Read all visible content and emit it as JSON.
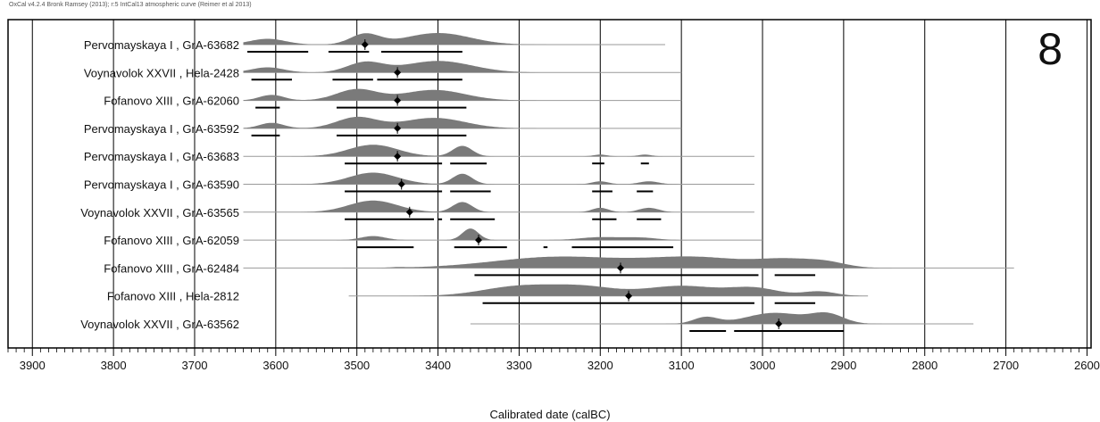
{
  "header_text": "OxCal v4.2.4 Bronk Ramsey (2013); r:5 IntCal13 atmospheric curve (Reimer et al 2013)",
  "panel_label": "8",
  "chart_data": {
    "type": "multiplot-probability",
    "xlabel": "Calibrated date (calBC)",
    "xlim": [
      3930,
      2595
    ],
    "x_ticks": [
      3900,
      3800,
      3700,
      3600,
      3500,
      3400,
      3300,
      3200,
      3100,
      3000,
      2900,
      2800,
      2700,
      2600
    ],
    "grid": "vertical lines at every 100 years",
    "rows": [
      {
        "label": "Pervomayskaya I , GrA-63682",
        "line": [
          3640,
          3120
        ],
        "peaks": [
          [
            3610,
            22,
            0.5
          ],
          [
            3490,
            18,
            0.9
          ],
          [
            3400,
            40,
            1.0
          ]
        ],
        "ranges": [
          [
            3635,
            3560
          ],
          [
            3535,
            3485
          ],
          [
            3470,
            3370
          ]
        ],
        "median": 3490
      },
      {
        "label": "Voynavolok XXVII , Hela-2428",
        "line": [
          3640,
          3100
        ],
        "peaks": [
          [
            3610,
            20,
            0.45
          ],
          [
            3490,
            22,
            0.85
          ],
          [
            3400,
            42,
            1.0
          ]
        ],
        "ranges": [
          [
            3630,
            3580
          ],
          [
            3530,
            3480
          ],
          [
            3475,
            3370
          ]
        ],
        "median": 3450
      },
      {
        "label": "Fofanovo XIII , GrA-62060",
        "line": [
          3640,
          3100
        ],
        "peaks": [
          [
            3605,
            15,
            0.5
          ],
          [
            3500,
            25,
            1.0
          ],
          [
            3405,
            38,
            0.95
          ]
        ],
        "ranges": [
          [
            3625,
            3595
          ],
          [
            3525,
            3365
          ]
        ],
        "median": 3450
      },
      {
        "label": "Pervomayskaya I , GrA-63592",
        "line": [
          3640,
          3100
        ],
        "peaks": [
          [
            3605,
            15,
            0.5
          ],
          [
            3500,
            25,
            1.0
          ],
          [
            3405,
            38,
            0.95
          ]
        ],
        "ranges": [
          [
            3630,
            3595
          ],
          [
            3525,
            3365
          ]
        ],
        "median": 3450
      },
      {
        "label": "Pervomayskaya I , GrA-63683",
        "line": [
          3640,
          3010
        ],
        "peaks": [
          [
            3480,
            30,
            1.0
          ],
          [
            3370,
            12,
            0.9
          ],
          [
            3200,
            8,
            0.15
          ],
          [
            3145,
            8,
            0.15
          ]
        ],
        "ranges": [
          [
            3515,
            3395
          ],
          [
            3385,
            3340
          ],
          [
            3210,
            3195
          ],
          [
            3150,
            3140
          ]
        ],
        "median": 3450
      },
      {
        "label": "Pervomayskaya I , GrA-63590",
        "line": [
          3640,
          3010
        ],
        "peaks": [
          [
            3480,
            30,
            1.0
          ],
          [
            3370,
            12,
            0.9
          ],
          [
            3200,
            10,
            0.25
          ],
          [
            3140,
            12,
            0.25
          ]
        ],
        "ranges": [
          [
            3515,
            3395
          ],
          [
            3385,
            3335
          ],
          [
            3210,
            3185
          ],
          [
            3155,
            3135
          ]
        ],
        "median": 3445
      },
      {
        "label": "Voynavolok XXVII , GrA-63565",
        "line": [
          3640,
          3010
        ],
        "peaks": [
          [
            3480,
            30,
            0.8
          ],
          [
            3370,
            12,
            0.7
          ],
          [
            3200,
            10,
            0.3
          ],
          [
            3140,
            12,
            0.3
          ]
        ],
        "ranges": [
          [
            3515,
            3405
          ],
          [
            3400,
            3395
          ],
          [
            3385,
            3330
          ],
          [
            3210,
            3180
          ],
          [
            3155,
            3125
          ]
        ],
        "median": 3435
      },
      {
        "label": "Fofanovo XIII , GrA-62059",
        "line": [
          3640,
          3000
        ],
        "peaks": [
          [
            3480,
            15,
            0.35
          ],
          [
            3360,
            10,
            1.0
          ],
          [
            3200,
            25,
            0.25
          ],
          [
            3150,
            20,
            0.2
          ]
        ],
        "ranges": [
          [
            3500,
            3430
          ],
          [
            3380,
            3315
          ],
          [
            3270,
            3265
          ],
          [
            3235,
            3110
          ]
        ],
        "median": 3350
      },
      {
        "label": "Fofanovo XIII , GrA-62484",
        "line": [
          3640,
          2690
        ],
        "peaks": [
          [
            3450,
            8,
            0.05
          ],
          [
            3250,
            80,
            1.0
          ],
          [
            3080,
            60,
            0.9
          ],
          [
            2970,
            35,
            0.65
          ],
          [
            2920,
            25,
            0.4
          ]
        ],
        "ranges": [
          [
            3355,
            3005
          ],
          [
            2985,
            2935
          ]
        ],
        "median": 3175
      },
      {
        "label": "Fofanovo XIII , Hela-2812",
        "line": [
          3510,
          2870
        ],
        "peaks": [
          [
            3300,
            45,
            0.95
          ],
          [
            3220,
            40,
            0.85
          ],
          [
            3100,
            45,
            1.0
          ],
          [
            3010,
            30,
            0.75
          ],
          [
            2930,
            20,
            0.45
          ]
        ],
        "ranges": [
          [
            3345,
            3010
          ],
          [
            2985,
            2935
          ]
        ],
        "median": 3165
      },
      {
        "label": "Voynavolok XXVII , GrA-63562",
        "line": [
          3360,
          2740
        ],
        "peaks": [
          [
            3070,
            15,
            0.6
          ],
          [
            2985,
            35,
            1.0
          ],
          [
            2920,
            20,
            0.85
          ]
        ],
        "ranges": [
          [
            3090,
            3045
          ],
          [
            3035,
            2900
          ]
        ],
        "median": 2980
      }
    ]
  }
}
